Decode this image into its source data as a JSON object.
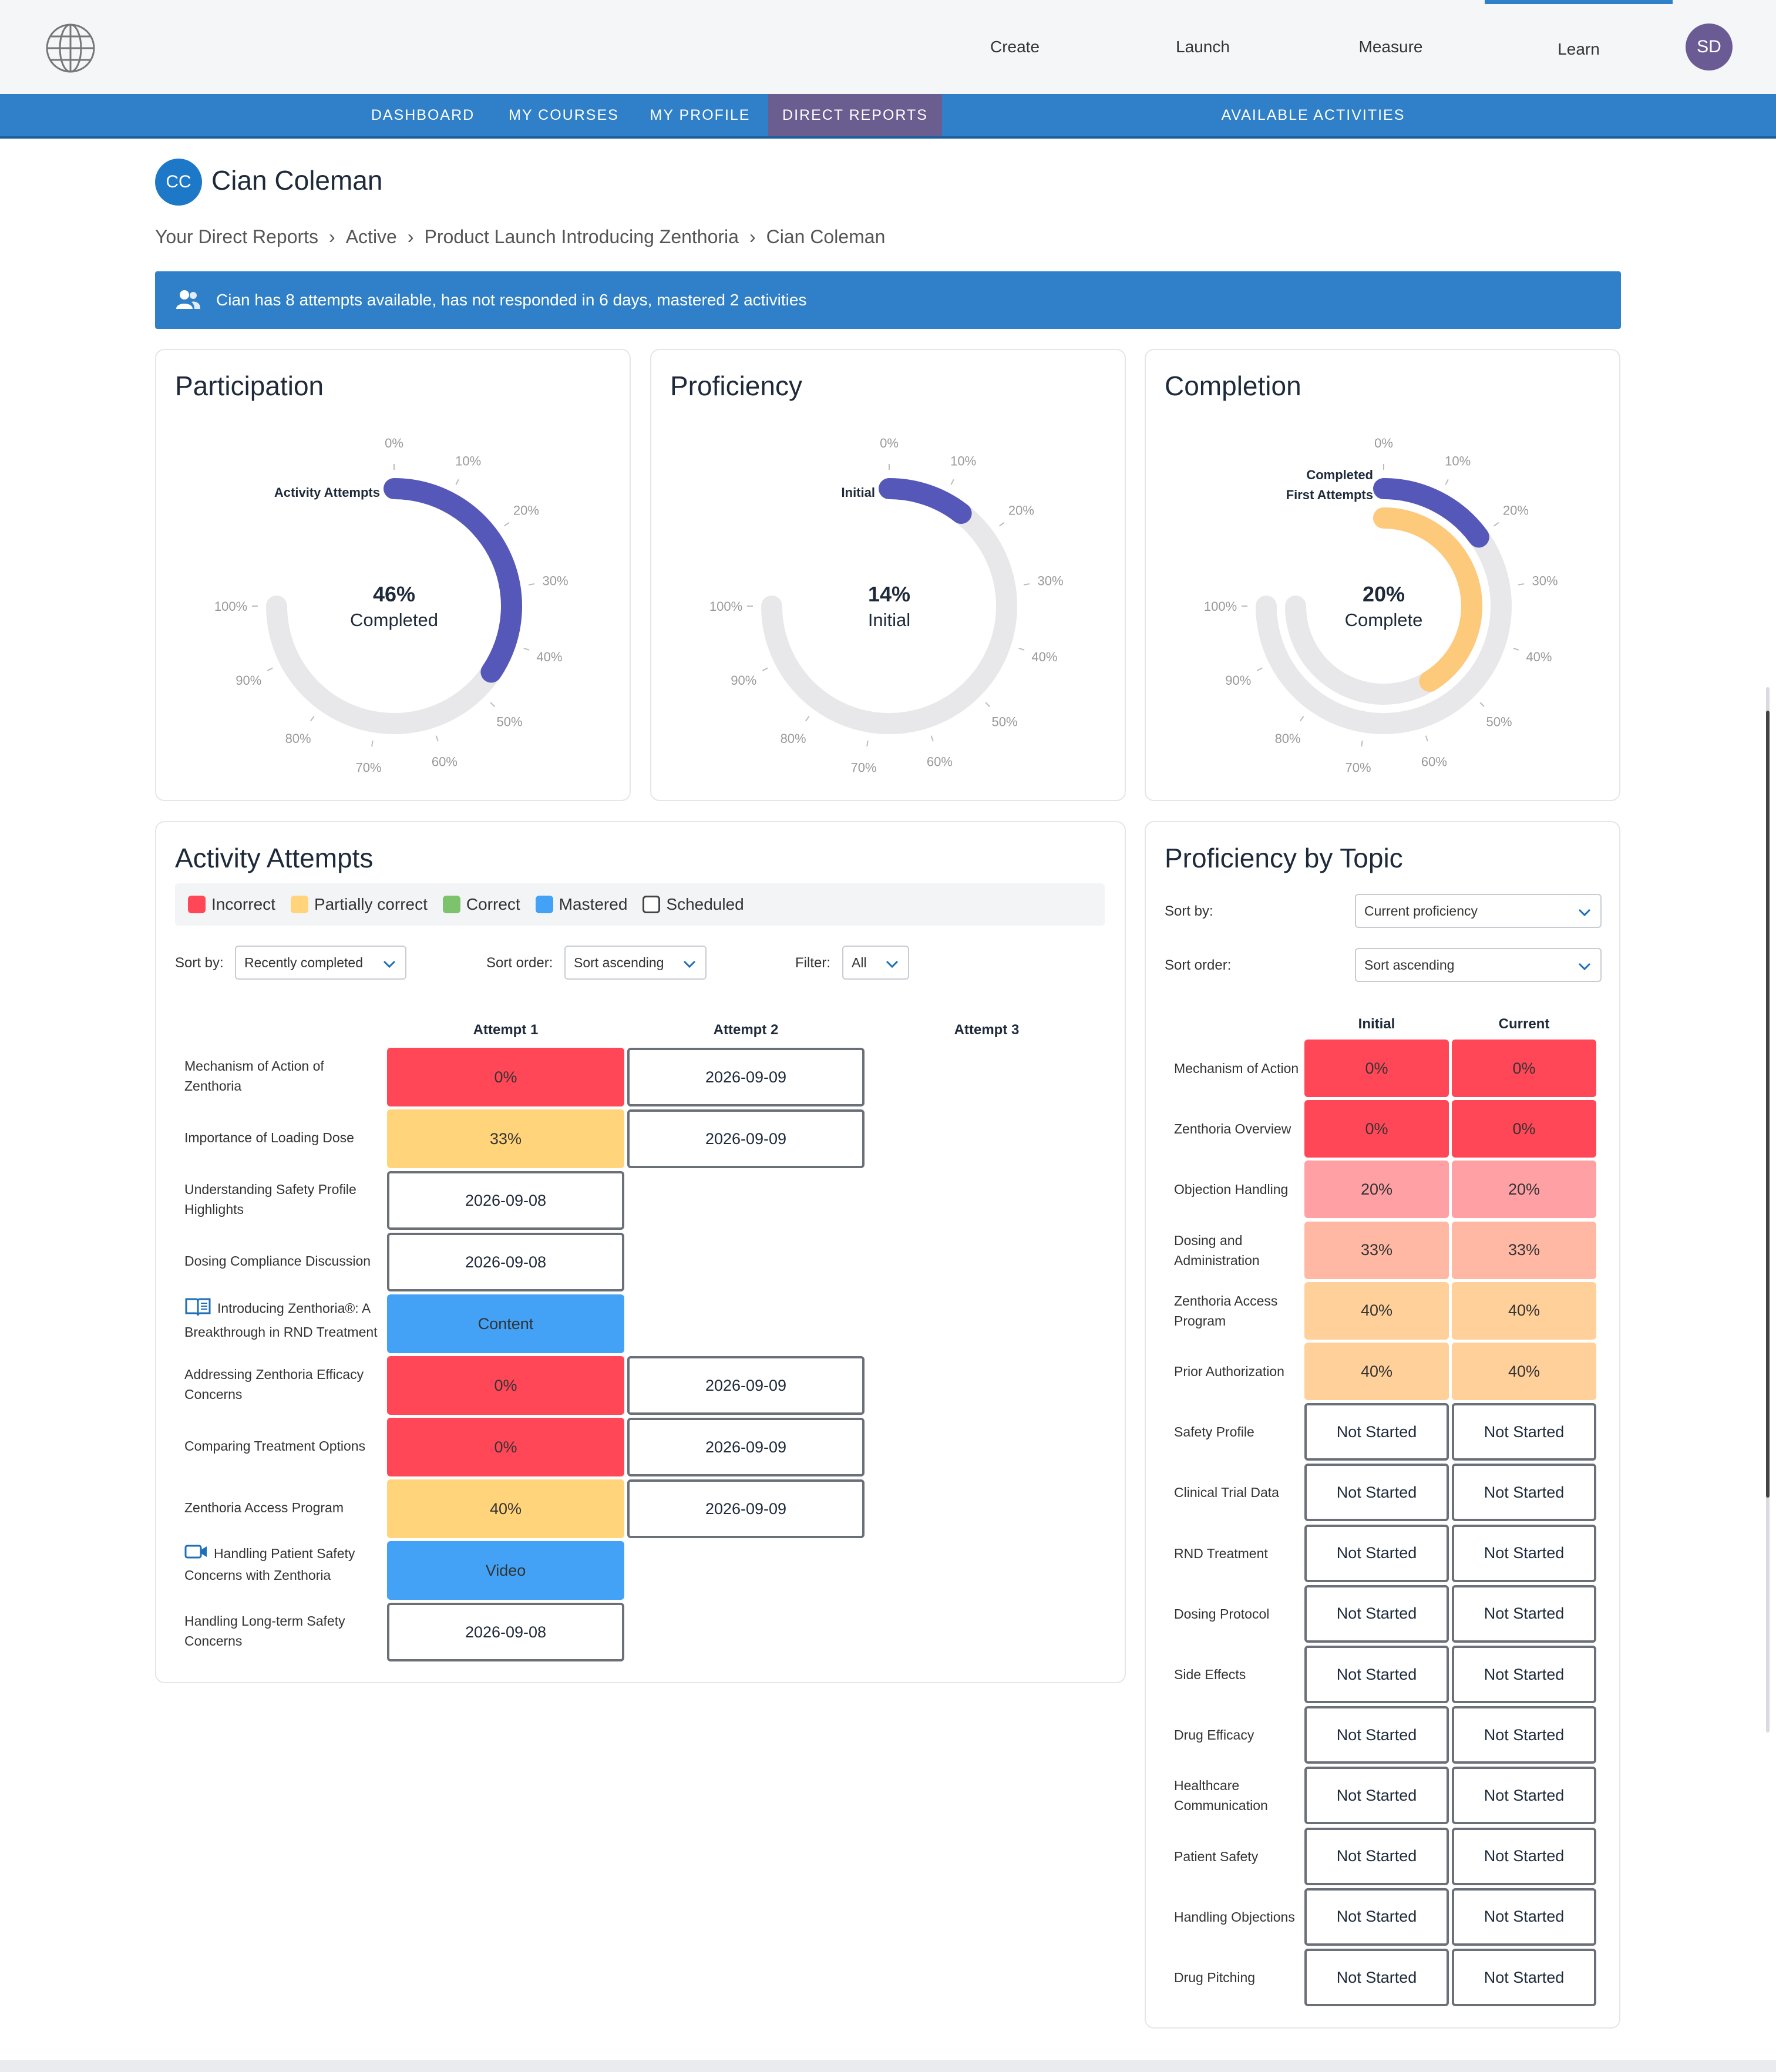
{
  "topbar": {
    "nav": [
      {
        "label": "Create",
        "active": false
      },
      {
        "label": "Launch",
        "active": false
      },
      {
        "label": "Measure",
        "active": false
      },
      {
        "label": "Learn",
        "active": true
      }
    ],
    "avatar_initials": "SD"
  },
  "subnav": {
    "tabs": [
      {
        "label": "DASHBOARD"
      },
      {
        "label": "MY COURSES"
      },
      {
        "label": "MY PROFILE"
      },
      {
        "label": "DIRECT REPORTS",
        "active": true
      },
      {
        "label": "AVAILABLE ACTIVITIES"
      }
    ]
  },
  "user": {
    "initials": "CC",
    "name": "Cian Coleman"
  },
  "breadcrumb": {
    "items": [
      "Your Direct Reports",
      "Active",
      "Product Launch Introducing Zenthoria",
      "Cian Coleman"
    ],
    "separator": "›"
  },
  "banner": {
    "text": "Cian has 8 attempts available, has not responded in 6 days, mastered 2 activities",
    "icon": "users-icon"
  },
  "gauges": {
    "ticks": [
      "0%",
      "10%",
      "20%",
      "30%",
      "40%",
      "50%",
      "60%",
      "70%",
      "80%",
      "90%",
      "100%"
    ],
    "participation": {
      "title": "Participation",
      "value_text": "46%",
      "sub_text": "Completed",
      "series_label": "Activity Attempts",
      "value": 0.46
    },
    "proficiency": {
      "title": "Proficiency",
      "value_text": "14%",
      "sub_text": "Initial",
      "series_label": "Initial",
      "value": 0.14
    },
    "completion": {
      "title": "Completion",
      "value_text": "20%",
      "sub_text": "Complete",
      "outer_label": "Completed",
      "outer_value": 0.2,
      "inner_label": "First Attempts",
      "inner_value": 0.55
    }
  },
  "colors": {
    "accent": "#2f80c8",
    "incorrect": "#ff4757",
    "partial": "#ffd47a",
    "correct": "#7dc36b",
    "mastered": "#43a2f5",
    "gauge_fill": "#5558b8",
    "gauge_track": "#e8e8ea",
    "first_attempts": "#fdc97a"
  },
  "activity_attempts": {
    "title": "Activity Attempts",
    "legend": [
      "Incorrect",
      "Partially correct",
      "Correct",
      "Mastered",
      "Scheduled"
    ],
    "sort_by_label": "Sort by:",
    "sort_by_value": "Recently completed",
    "sort_order_label": "Sort order:",
    "sort_order_value": "Sort ascending",
    "filter_label": "Filter:",
    "filter_value": "All",
    "columns": [
      "Attempt 1",
      "Attempt 2",
      "Attempt 3"
    ],
    "rows": [
      {
        "label": "Mechanism of Action of Zenthoria",
        "cells": [
          {
            "text": "0%",
            "kind": "incorrect"
          },
          {
            "text": "2026-09-09",
            "kind": "scheduled"
          }
        ]
      },
      {
        "label": "Importance of Loading Dose",
        "cells": [
          {
            "text": "33%",
            "kind": "partial"
          },
          {
            "text": "2026-09-09",
            "kind": "scheduled"
          }
        ]
      },
      {
        "label": "Understanding Safety Profile Highlights",
        "cells": [
          {
            "text": "2026-09-08",
            "kind": "scheduled"
          }
        ]
      },
      {
        "label": "Dosing Compliance Discussion",
        "cells": [
          {
            "text": "2026-09-08",
            "kind": "scheduled"
          }
        ]
      },
      {
        "label": "Introducing Zenthoria®: A Breakthrough in RND Treatment",
        "icon": "book-icon",
        "cells": [
          {
            "text": "Content",
            "kind": "mastered"
          }
        ]
      },
      {
        "label": "Addressing Zenthoria Efficacy Concerns",
        "cells": [
          {
            "text": "0%",
            "kind": "incorrect"
          },
          {
            "text": "2026-09-09",
            "kind": "scheduled"
          }
        ]
      },
      {
        "label": "Comparing Treatment Options",
        "cells": [
          {
            "text": "0%",
            "kind": "incorrect"
          },
          {
            "text": "2026-09-09",
            "kind": "scheduled"
          }
        ]
      },
      {
        "label": "Zenthoria Access Program",
        "cells": [
          {
            "text": "40%",
            "kind": "partial"
          },
          {
            "text": "2026-09-09",
            "kind": "scheduled"
          }
        ]
      },
      {
        "label": "Handling Patient Safety Concerns with Zenthoria",
        "icon": "video-icon",
        "cells": [
          {
            "text": "Video",
            "kind": "mastered"
          }
        ]
      },
      {
        "label": "Handling Long-term Safety Concerns",
        "cells": [
          {
            "text": "2026-09-08",
            "kind": "scheduled"
          }
        ]
      }
    ]
  },
  "proficiency_by_topic": {
    "title": "Proficiency by Topic",
    "sort_by_label": "Sort by:",
    "sort_by_value": "Current proficiency",
    "sort_order_label": "Sort order:",
    "sort_order_value": "Sort ascending",
    "columns": [
      "Initial",
      "Current"
    ],
    "rows": [
      {
        "label": "Mechanism of Action",
        "initial": "0%",
        "current": "0%",
        "color": "#ff4757"
      },
      {
        "label": "Zenthoria Overview",
        "initial": "0%",
        "current": "0%",
        "color": "#ff4757"
      },
      {
        "label": "Objection Handling",
        "initial": "20%",
        "current": "20%",
        "color": "#ffa0a5"
      },
      {
        "label": "Dosing and Administration",
        "initial": "33%",
        "current": "33%",
        "color": "#ffb8a4"
      },
      {
        "label": "Zenthoria Access Program",
        "initial": "40%",
        "current": "40%",
        "color": "#ffd09a"
      },
      {
        "label": "Prior Authorization",
        "initial": "40%",
        "current": "40%",
        "color": "#ffd09a"
      },
      {
        "label": "Safety Profile",
        "initial": "Not Started",
        "current": "Not Started"
      },
      {
        "label": "Clinical Trial Data",
        "initial": "Not Started",
        "current": "Not Started"
      },
      {
        "label": "RND Treatment",
        "initial": "Not Started",
        "current": "Not Started"
      },
      {
        "label": "Dosing Protocol",
        "initial": "Not Started",
        "current": "Not Started"
      },
      {
        "label": "Side Effects",
        "initial": "Not Started",
        "current": "Not Started"
      },
      {
        "label": "Drug Efficacy",
        "initial": "Not Started",
        "current": "Not Started"
      },
      {
        "label": "Healthcare Communication",
        "initial": "Not Started",
        "current": "Not Started"
      },
      {
        "label": "Patient Safety",
        "initial": "Not Started",
        "current": "Not Started"
      },
      {
        "label": "Handling Objections",
        "initial": "Not Started",
        "current": "Not Started"
      },
      {
        "label": "Drug Pitching",
        "initial": "Not Started",
        "current": "Not Started"
      }
    ]
  }
}
